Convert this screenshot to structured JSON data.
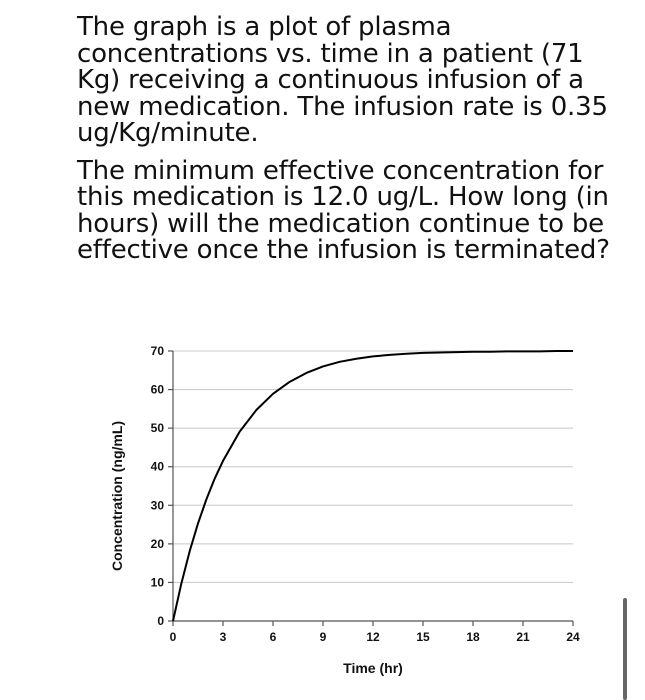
{
  "question": {
    "paragraph1": "The graph is a plot of plasma concentrations vs. time in a patient (71 Kg) receiving a continuous infusion of a new medication.  The infusion rate is 0.35 ug/Kg/minute.",
    "paragraph2": "The minimum effective concentration for this medication is 12.0 ug/L.  How long (in hours) will the medication continue to be effective once the infusion is terminated?"
  },
  "chart_data": {
    "type": "line",
    "title": "",
    "xlabel": "Time (hr)",
    "ylabel": "Concentration (ng/mL)",
    "xlim": [
      0,
      24
    ],
    "ylim": [
      0,
      70
    ],
    "xticks": [
      0,
      3,
      6,
      9,
      12,
      15,
      18,
      21,
      24
    ],
    "yticks": [
      0,
      10,
      20,
      30,
      40,
      50,
      60,
      70
    ],
    "grid": true,
    "legend": "none",
    "series": [
      {
        "color": "#000000",
        "x": [
          0,
          0.5,
          1,
          1.5,
          2,
          2.5,
          3,
          4,
          5,
          6,
          7,
          8,
          9,
          10,
          11,
          12,
          13,
          14,
          15,
          16,
          17,
          18,
          19,
          20,
          21,
          22,
          23,
          24
        ],
        "y": [
          0,
          9.7,
          18.1,
          25.3,
          31.5,
          36.9,
          41.5,
          49.1,
          54.7,
          58.9,
          62.0,
          64.3,
          66.0,
          67.2,
          68.0,
          68.6,
          69.0,
          69.3,
          69.5,
          69.6,
          69.7,
          69.8,
          69.8,
          69.9,
          69.9,
          69.9,
          70.0,
          70.0
        ]
      }
    ]
  }
}
